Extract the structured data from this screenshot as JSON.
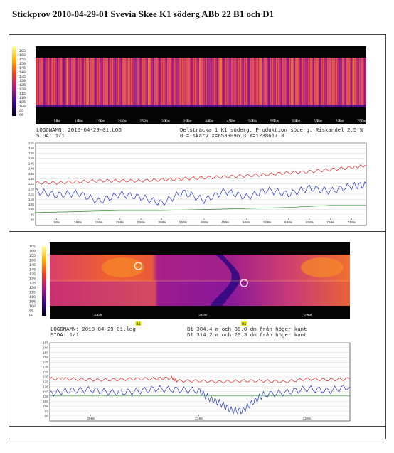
{
  "page": {
    "title": "Stickprov 2010-04-29-01 Svevia Skee K1 söderg ABb 22  B1 och D1"
  },
  "panel1": {
    "thermal": {
      "scale_labels": [
        "165",
        "160",
        "155",
        "150",
        "145",
        "140",
        "135",
        "130",
        "125",
        "120",
        "115",
        "110",
        "105",
        "100",
        "95",
        "90"
      ],
      "x_ticks": [
        "50m",
        "100m",
        "150m",
        "200m",
        "250m",
        "300m",
        "350m",
        "400m",
        "450m",
        "500m",
        "550m",
        "600m",
        "650m",
        "700m",
        "750m"
      ]
    },
    "info": {
      "logname": "LOGGNAMN: 2010-04-29-01.LOG",
      "page": "SIDA: 1/1",
      "section": "Delsträcka 1 K1 söderg. Produktion söderg. Riskandel 2.5 %",
      "coords": "0 = skarv X=6539096.3 Y=1238617.3"
    }
  },
  "panel2": {
    "thermal": {
      "scale_labels": [
        "165",
        "160",
        "155",
        "150",
        "145",
        "140",
        "135",
        "130",
        "125",
        "120",
        "115",
        "110",
        "105",
        "100",
        "95",
        "90"
      ],
      "x_ticks": [
        "300m",
        "310m",
        "320m"
      ],
      "markers": [
        {
          "label": "B1",
          "x": 304.4
        },
        {
          "label": "D1",
          "x": 314.2
        }
      ]
    },
    "info": {
      "logname": "LOGGNAMN: 2010-04-29-01.log",
      "page": "SIDA: 1/1",
      "b1": "B1 304.4 m och 38.0 dm från höger kant",
      "d1": "D1 314.2 m och 20.3 dm från höger kant"
    }
  },
  "chart_data": [
    {
      "type": "line",
      "x_unit": "m",
      "x_ticks": [
        "50m",
        "100m",
        "150m",
        "200m",
        "250m",
        "300m",
        "350m",
        "400m",
        "450m",
        "500m",
        "550m",
        "600m",
        "650m",
        "700m",
        "750m"
      ],
      "xlim": [
        0,
        785
      ],
      "ylim": [
        90,
        165
      ],
      "y_ticks": [
        165,
        160,
        155,
        150,
        145,
        140,
        135,
        130,
        125,
        120,
        115,
        110,
        105,
        100,
        95,
        90
      ],
      "series": [
        {
          "color": "#dd2222",
          "x": [
            0,
            50,
            100,
            150,
            200,
            250,
            300,
            350,
            400,
            450,
            500,
            550,
            600,
            650,
            700,
            750,
            785
          ],
          "values": [
            126,
            126,
            127,
            128,
            128,
            128,
            129,
            130,
            131,
            132,
            133,
            134,
            136,
            137,
            139,
            141,
            143
          ]
        },
        {
          "color": "#2233cc",
          "x": [
            0,
            50,
            100,
            150,
            200,
            250,
            300,
            350,
            400,
            450,
            500,
            550,
            600,
            650,
            700,
            750,
            785
          ],
          "values": [
            118,
            114,
            116,
            108,
            115,
            112,
            106,
            117,
            109,
            118,
            112,
            119,
            115,
            121,
            118,
            123,
            124
          ]
        },
        {
          "color": "#228822",
          "x": [
            0,
            100,
            200,
            300,
            400,
            500,
            600,
            700,
            785
          ],
          "values": [
            97,
            98,
            99,
            99,
            100,
            101,
            102,
            104,
            104
          ]
        }
      ]
    },
    {
      "type": "line",
      "x_unit": "m",
      "x_ticks": [
        "300m",
        "310m",
        "320m"
      ],
      "xlim": [
        296.2,
        324.0
      ],
      "ylim": [
        90,
        165
      ],
      "y_ticks": [
        165,
        160,
        155,
        150,
        145,
        140,
        135,
        130,
        125,
        120,
        115,
        110,
        105,
        100,
        95,
        90
      ],
      "series": [
        {
          "color": "#dd2222",
          "x": [
            296.2,
            298,
            300,
            302,
            304,
            306,
            307.5,
            308,
            310,
            312,
            314,
            316,
            318,
            320,
            322,
            324
          ],
          "values": [
            128,
            128,
            127,
            127,
            128,
            128,
            129,
            126,
            126,
            125,
            126,
            126,
            125,
            128,
            127,
            128
          ]
        },
        {
          "color": "#2233cc",
          "x": [
            296.2,
            298,
            300,
            302,
            304,
            306,
            308,
            310,
            311,
            312,
            313,
            314,
            315,
            316,
            318,
            320,
            322,
            324
          ],
          "values": [
            113,
            116,
            117,
            114,
            115,
            118,
            117,
            116,
            108,
            103,
            96,
            95,
            104,
            112,
            114,
            118,
            116,
            120
          ]
        },
        {
          "color": "#228822",
          "x": [
            296.2,
            324
          ],
          "values": [
            111,
            111
          ]
        }
      ]
    }
  ]
}
